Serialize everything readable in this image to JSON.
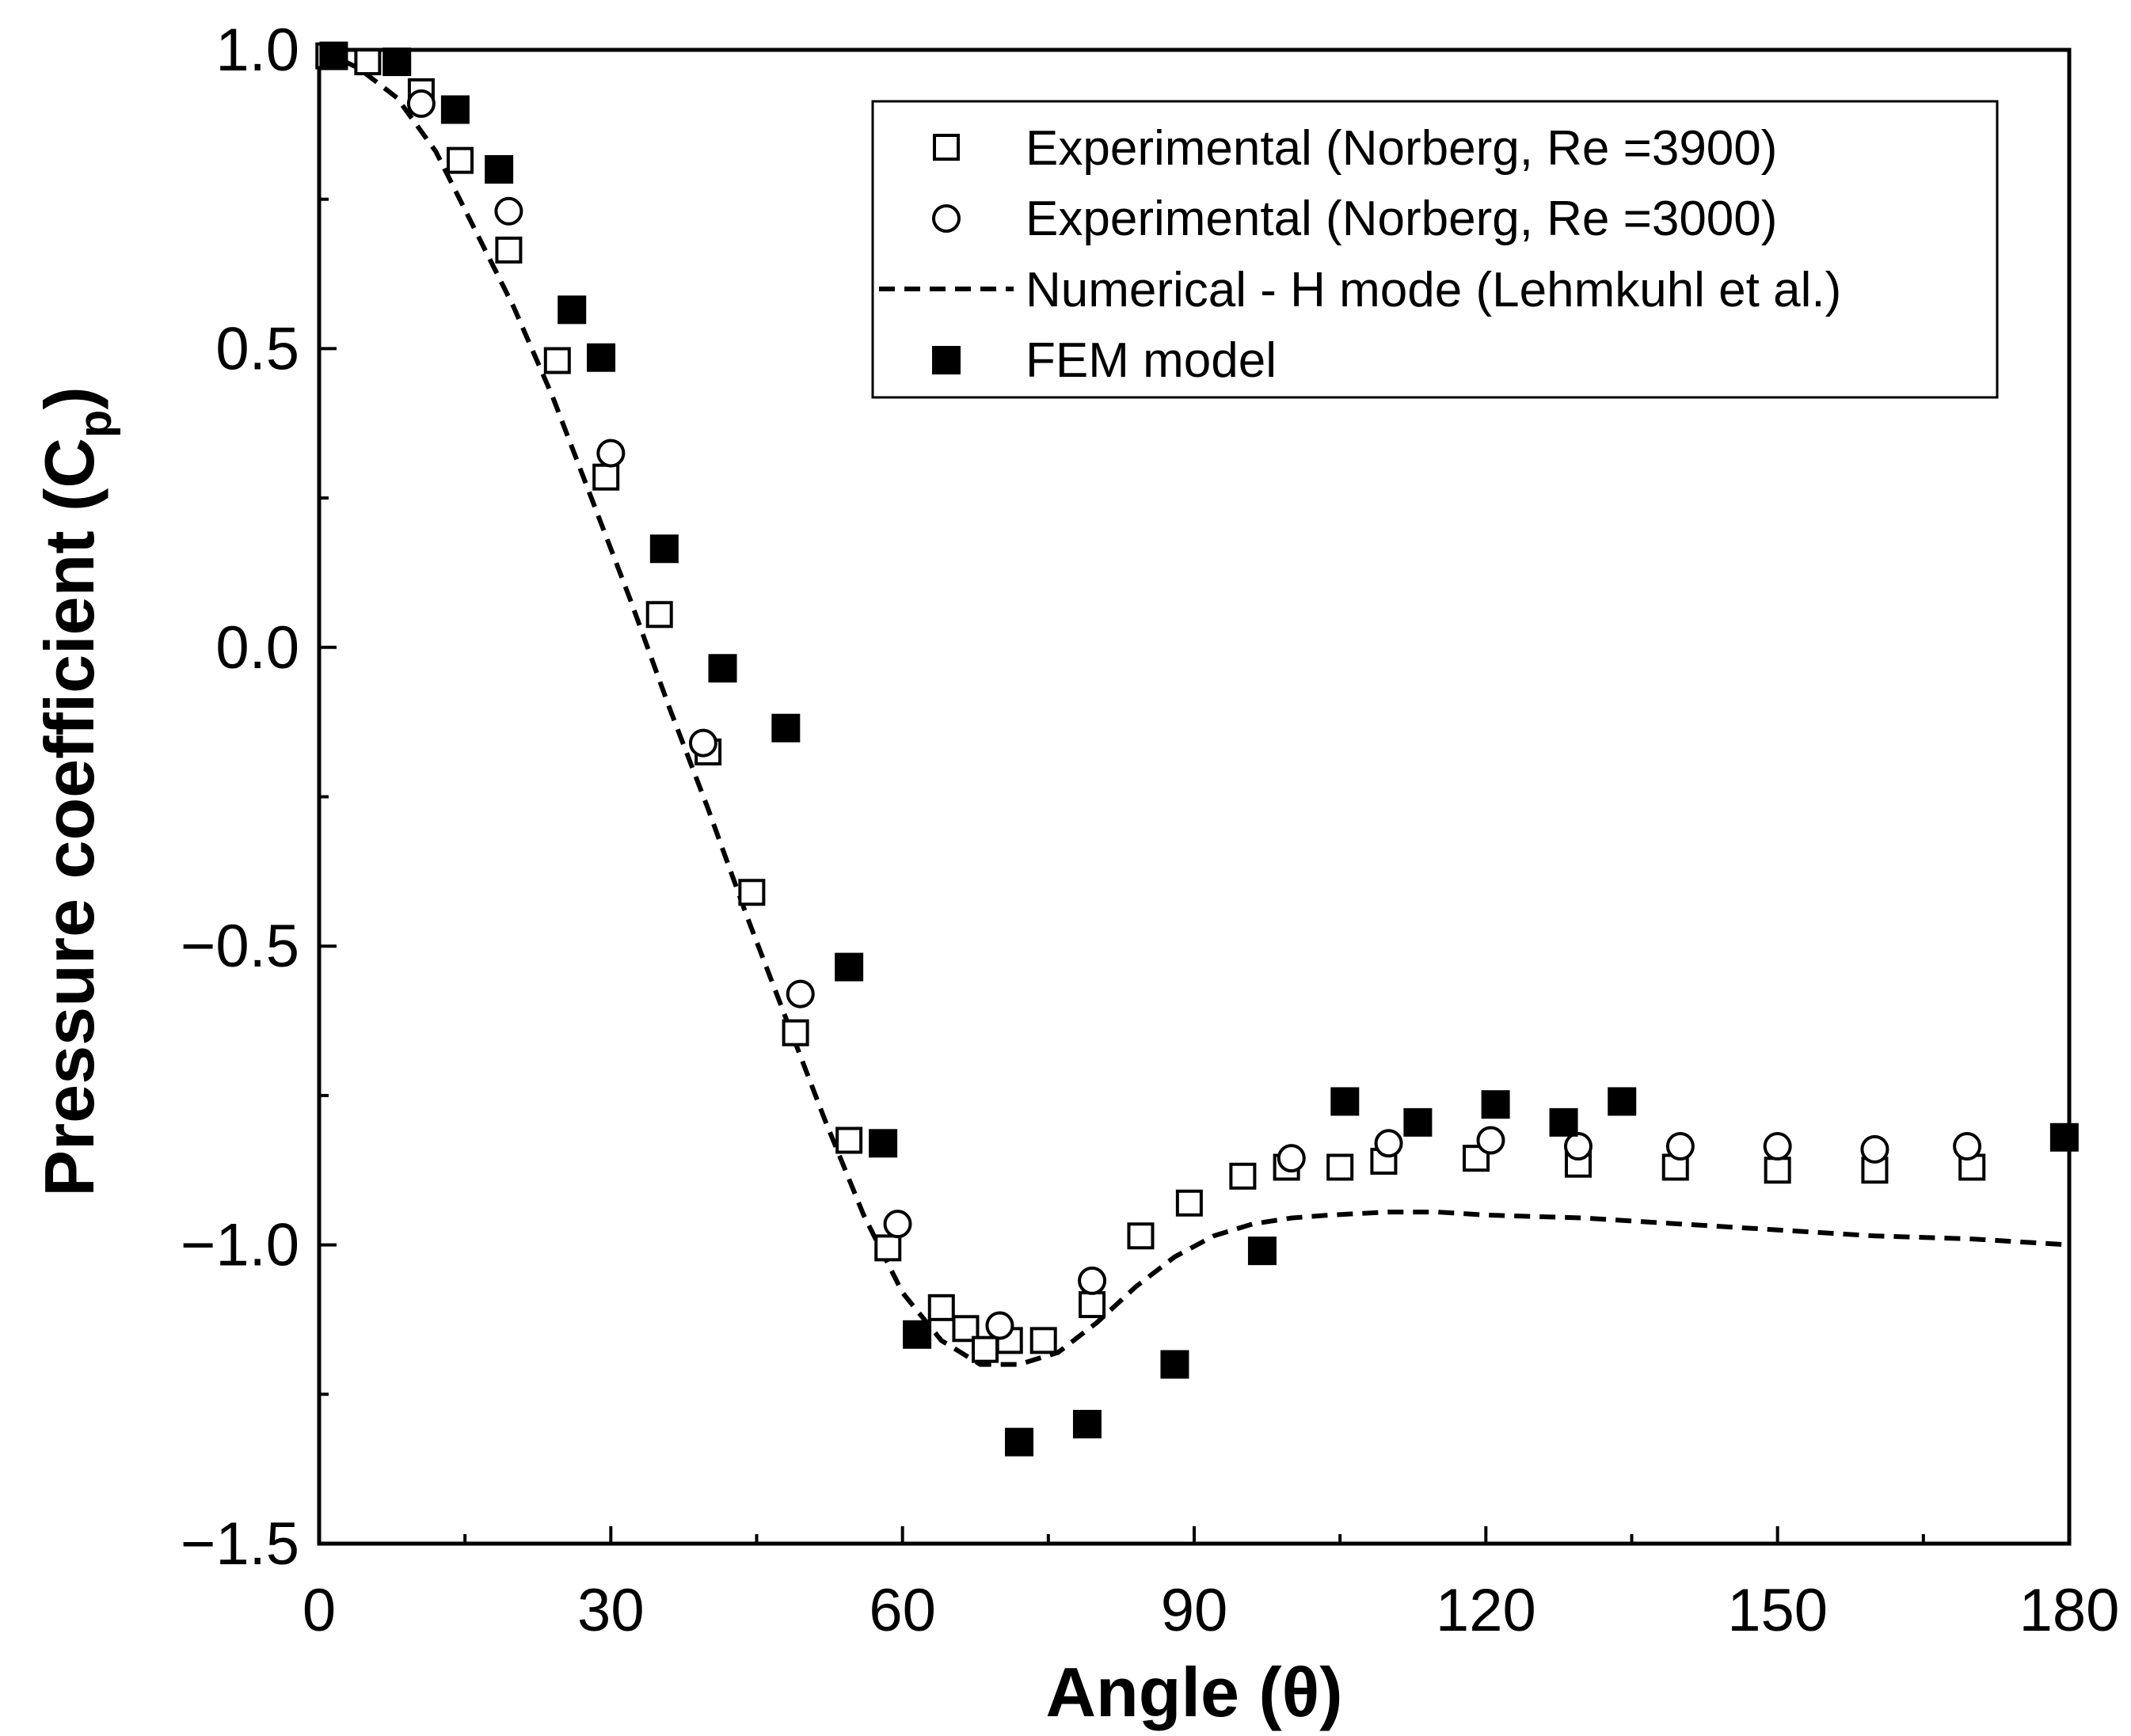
{
  "chart_data": {
    "type": "scatter",
    "title": "",
    "xlabel": "Angle (θ)",
    "ylabel_main": "Pressure coefficient (C",
    "ylabel_sub": "p",
    "ylabel_close": ")",
    "xlim": [
      0,
      180
    ],
    "ylim": [
      -1.5,
      1.0
    ],
    "xticks": [
      0,
      30,
      60,
      90,
      120,
      150,
      180
    ],
    "xtick_labels": [
      "0",
      "30",
      "60",
      "90",
      "120",
      "150",
      "180"
    ],
    "yticks": [
      1.0,
      0.5,
      0.0,
      -0.5,
      -1.0,
      -1.5
    ],
    "ytick_labels": [
      "1.0",
      "0.5",
      "0.0",
      "−0.5",
      "−1.0",
      "−1.5"
    ],
    "grid": false,
    "legend_position": "top-right",
    "series": [
      {
        "name": "Experimental (Norberg, Re =3900)",
        "marker": "open-square",
        "x": [
          1,
          5,
          10.5,
          14.5,
          19.5,
          24.5,
          29.5,
          35,
          40,
          44.5,
          49,
          54.5,
          58.5,
          64,
          66.5,
          68.5,
          71,
          74.5,
          79.5,
          84.5,
          89.5,
          95,
          99.5,
          105,
          109.5,
          119,
          129.5,
          139.5,
          150,
          160,
          170
        ],
        "y": [
          0.99,
          0.98,
          0.93,
          0.815,
          0.665,
          0.48,
          0.285,
          0.055,
          -0.175,
          -0.41,
          -0.645,
          -0.825,
          -1.005,
          -1.105,
          -1.14,
          -1.175,
          -1.16,
          -1.16,
          -1.1,
          -0.985,
          -0.93,
          -0.885,
          -0.87,
          -0.87,
          -0.86,
          -0.855,
          -0.865,
          -0.87,
          -0.875,
          -0.875,
          -0.87
        ]
      },
      {
        "name": "Experimental (Norberg, Re =3000)",
        "marker": "open-circle",
        "x": [
          10.5,
          19.5,
          30,
          39.5,
          49.5,
          59.5,
          70,
          79.5,
          100,
          110,
          120.5,
          129.5,
          140,
          150,
          160,
          169.5
        ],
        "y": [
          0.91,
          0.73,
          0.325,
          -0.16,
          -0.58,
          -0.965,
          -1.135,
          -1.06,
          -0.855,
          -0.83,
          -0.825,
          -0.835,
          -0.835,
          -0.835,
          -0.84,
          -0.835
        ]
      },
      {
        "name": "Numerical - H mode (Lehmkuhl et al.)",
        "marker": "dashed-line",
        "x": [
          0,
          4,
          8,
          12,
          16,
          20,
          24,
          28,
          32,
          36,
          40,
          44,
          48,
          52,
          56,
          60,
          64,
          68,
          72,
          76,
          80,
          84,
          88,
          92,
          96,
          100,
          104,
          110,
          115,
          120,
          130,
          140,
          150,
          160,
          170,
          180
        ],
        "y": [
          1.0,
          0.97,
          0.92,
          0.83,
          0.7,
          0.57,
          0.42,
          0.25,
          0.08,
          -0.1,
          -0.27,
          -0.45,
          -0.62,
          -0.79,
          -0.95,
          -1.08,
          -1.16,
          -1.2,
          -1.2,
          -1.18,
          -1.13,
          -1.07,
          -1.02,
          -0.985,
          -0.965,
          -0.955,
          -0.95,
          -0.945,
          -0.945,
          -0.95,
          -0.955,
          -0.965,
          -0.975,
          -0.985,
          -0.99,
          -1.0
        ]
      },
      {
        "name": "FEM model",
        "marker": "filled-square",
        "x": [
          1.5,
          8,
          14,
          18.5,
          26,
          29,
          35.5,
          41.5,
          48,
          54.5,
          58,
          61.5,
          72,
          79,
          88,
          97,
          105.5,
          113,
          121,
          128,
          134,
          179.5
        ],
        "y": [
          0.99,
          0.98,
          0.9,
          0.8,
          0.565,
          0.485,
          0.165,
          -0.035,
          -0.135,
          -0.535,
          -0.83,
          -1.15,
          -1.33,
          -1.3,
          -1.2,
          -1.01,
          -0.76,
          -0.795,
          -0.765,
          -0.795,
          -0.76,
          -0.82
        ]
      }
    ]
  }
}
